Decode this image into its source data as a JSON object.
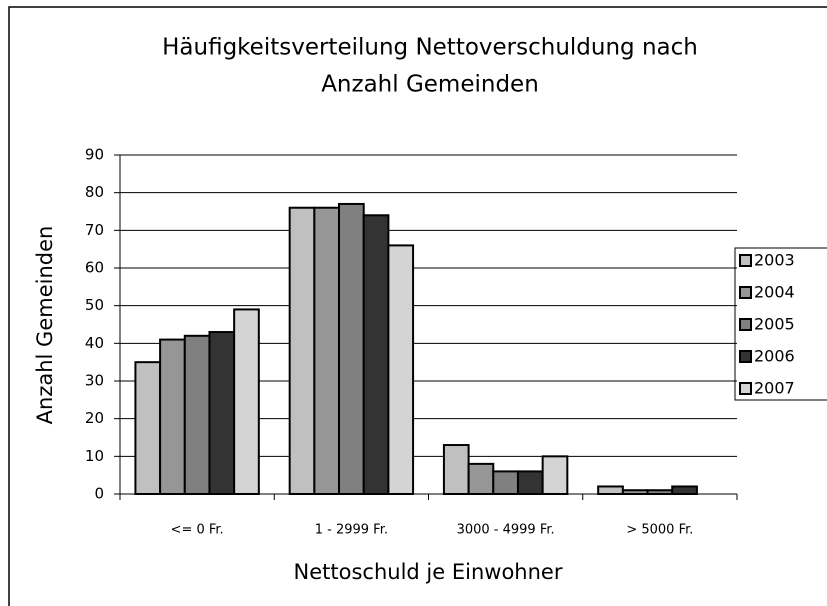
{
  "chart_data": {
    "type": "bar",
    "title": [
      "Häufigkeitsverteilung Nettoverschuldung nach",
      "Anzahl Gemeinden"
    ],
    "x_label": "Nettoschuld je Einwohner",
    "y_label": "Anzahl Gemeinden",
    "categories": [
      "<= 0 Fr.",
      "1 - 2999 Fr.",
      "3000 - 4999 Fr.",
      "> 5000 Fr."
    ],
    "series": [
      {
        "name": "2003",
        "color": "#c0c0c0",
        "values": [
          35,
          76,
          13,
          2
        ]
      },
      {
        "name": "2004",
        "color": "#969696",
        "values": [
          41,
          76,
          8,
          1
        ]
      },
      {
        "name": "2005",
        "color": "#808080",
        "values": [
          42,
          77,
          6,
          1
        ]
      },
      {
        "name": "2006",
        "color": "#333333",
        "values": [
          43,
          74,
          6,
          2
        ]
      },
      {
        "name": "2007",
        "color": "#d4d4d4",
        "values": [
          49,
          66,
          10,
          0
        ]
      }
    ],
    "ylim": [
      0,
      90
    ],
    "yticks": [
      0,
      10,
      20,
      30,
      40,
      50,
      60,
      70,
      80,
      90
    ],
    "grid": true,
    "legend": "right"
  }
}
